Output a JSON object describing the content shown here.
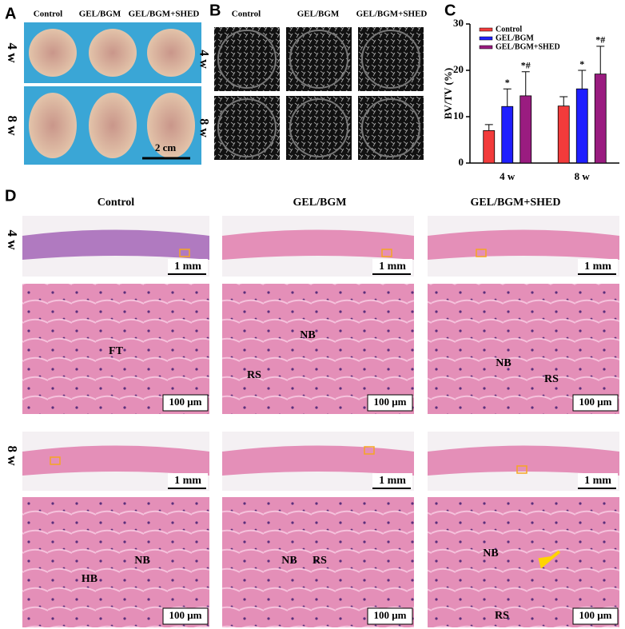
{
  "panel_labels": [
    "A",
    "B",
    "C",
    "D"
  ],
  "panel_a": {
    "columns": [
      "Control",
      "GEL/BGM",
      "GEL/BGM+SHED"
    ],
    "rows": [
      "4 w",
      "8 w"
    ],
    "scale_bar": "2 cm"
  },
  "panel_b": {
    "columns": [
      "Control",
      "GEL/BGM",
      "GEL/BGM+SHED"
    ],
    "rows": [
      "4 w",
      "8 w"
    ]
  },
  "chart_data": {
    "type": "bar",
    "y_label": "BV/TV (%)",
    "categories": [
      "4 w",
      "8 w"
    ],
    "series": [
      {
        "name": "Control",
        "color": "#f23b3b",
        "values": [
          7,
          12.3
        ],
        "errors": [
          1.3,
          2
        ]
      },
      {
        "name": "GEL/BGM",
        "color": "#1f1fff",
        "values": [
          12.2,
          16
        ],
        "errors": [
          3.8,
          4
        ]
      },
      {
        "name": "GEL/BGM+SHED",
        "color": "#9a1c80",
        "values": [
          14.5,
          19.2
        ],
        "errors": [
          5.2,
          6
        ]
      }
    ],
    "annotations": [
      {
        "text": "*",
        "series": 1,
        "category": 0
      },
      {
        "text": "*#",
        "series": 2,
        "category": 0
      },
      {
        "text": "*",
        "series": 1,
        "category": 1
      },
      {
        "text": "*#",
        "series": 2,
        "category": 1
      }
    ],
    "ylim": [
      0,
      30
    ],
    "yticks": [
      0,
      10,
      20,
      30
    ],
    "legend": "upper-left"
  },
  "panel_d": {
    "columns": [
      "Control",
      "GEL/BGM",
      "GEL/BGM+SHED"
    ],
    "rows": [
      "4 w",
      "8 w"
    ],
    "overview_scale": "1 mm",
    "detail_scale": "100 μm",
    "detail_labels": [
      [
        [
          "FT"
        ],
        [
          "NB",
          "RS"
        ],
        [
          "NB",
          "RS"
        ]
      ],
      [
        [
          "NB",
          "HB"
        ],
        [
          "NB",
          "RS"
        ],
        [
          "NB",
          "RS"
        ]
      ]
    ]
  }
}
